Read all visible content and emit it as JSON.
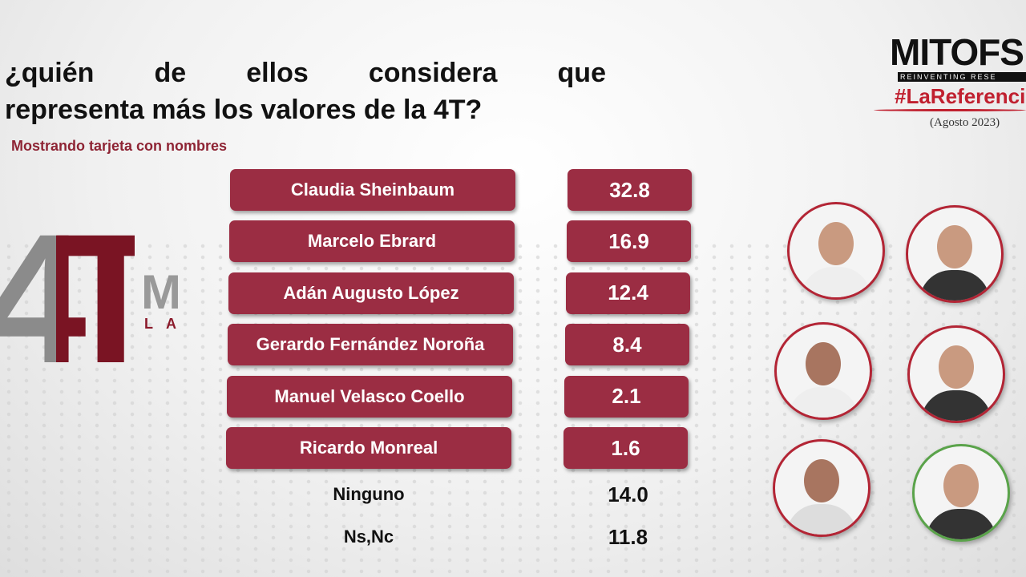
{
  "header": {
    "title_lines": [
      "¿quién de ellos considera que",
      "representa más los valores de la 4T?"
    ],
    "subtitle": "Mostrando tarjeta con nombres"
  },
  "logo_4t": {
    "main": "4T",
    "side": "M",
    "small": "L A"
  },
  "brand": {
    "name": "MITOFS",
    "tagline": "REINVENTING RESE",
    "hashtag": "#LaReferenci",
    "date": "(Agosto 2023)"
  },
  "table": {
    "rows": [
      [
        "Claudia Sheinbaum",
        "32.8"
      ],
      [
        "Marcelo Ebrard",
        "16.9"
      ],
      [
        "Adán Augusto López",
        "12.4"
      ],
      [
        "Gerardo Fernández Noroña",
        "8.4"
      ],
      [
        "Manuel Velasco Coello",
        "2.1"
      ],
      [
        "Ricardo Monreal",
        "1.6"
      ]
    ],
    "extra_rows": [
      [
        "Ninguno",
        "14.0"
      ],
      [
        "Ns,Nc",
        "11.8"
      ]
    ]
  }
}
